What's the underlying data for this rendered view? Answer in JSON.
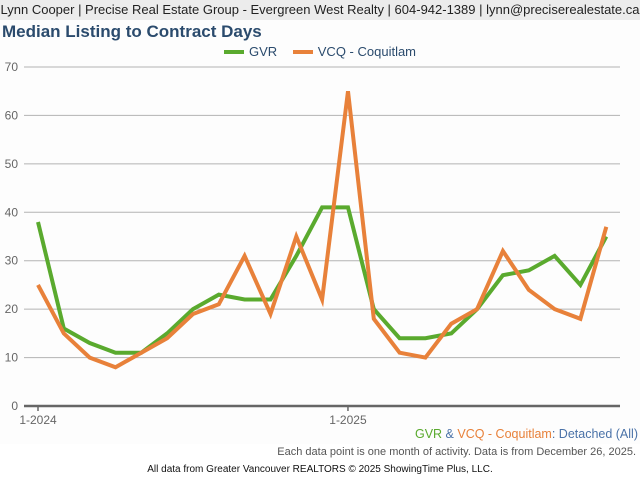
{
  "header": {
    "contact_line": "Lynn Cooper | Precise Real Estate Group - Evergreen West Realty | 604-942-1389 | lynn@preciserealestate.ca"
  },
  "colors": {
    "gvr": "#5aaa2e",
    "vcq": "#e8813a",
    "title": "#2b4b6d",
    "grid": "#b3b3b3",
    "axis": "#666666",
    "tick_text": "#666666"
  },
  "footer": {
    "subtitle_parts": [
      {
        "text": "GVR",
        "color": "#5aaa2e"
      },
      {
        "text": " & ",
        "color": "#4a72a8"
      },
      {
        "text": "VCQ - Coquitlam",
        "color": "#e8813a"
      },
      {
        "text": ": Detached (All)",
        "color": "#4a72a8"
      }
    ],
    "note": "Each data point is one month of activity. Data is from December 26, 2025.",
    "copyright": "All data from Greater Vancouver REALTORS © 2025 ShowingTime Plus, LLC."
  },
  "chart_data": {
    "type": "line",
    "title": "Median Listing to Contract Days",
    "xlabel": "",
    "ylabel": "",
    "ylim": [
      0,
      70
    ],
    "yticks": [
      0,
      10,
      20,
      30,
      40,
      50,
      60,
      70
    ],
    "grid": true,
    "legend_position": "top-center",
    "x": [
      "1-2024",
      "2-2024",
      "3-2024",
      "4-2024",
      "5-2024",
      "6-2024",
      "7-2024",
      "8-2024",
      "9-2024",
      "10-2024",
      "11-2024",
      "12-2024",
      "1-2025",
      "2-2025",
      "3-2025",
      "4-2025",
      "5-2025",
      "6-2025",
      "7-2025",
      "8-2025",
      "9-2025",
      "10-2025",
      "11-2025"
    ],
    "x_tick_labels": [
      {
        "index": 0,
        "label": "1-2024"
      },
      {
        "index": 12,
        "label": "1-2025"
      }
    ],
    "series": [
      {
        "name": "GVR",
        "color": "#5aaa2e",
        "values": [
          38,
          16,
          13,
          11,
          11,
          15,
          20,
          23,
          22,
          22,
          31,
          41,
          41,
          20,
          14,
          14,
          15,
          20,
          27,
          28,
          31,
          25,
          35
        ]
      },
      {
        "name": "VCQ - Coquitlam",
        "color": "#e8813a",
        "values": [
          25,
          15,
          10,
          8,
          11,
          14,
          19,
          21,
          31,
          19,
          35,
          22,
          65,
          18,
          11,
          10,
          17,
          20,
          32,
          24,
          20,
          18,
          37
        ]
      }
    ]
  }
}
